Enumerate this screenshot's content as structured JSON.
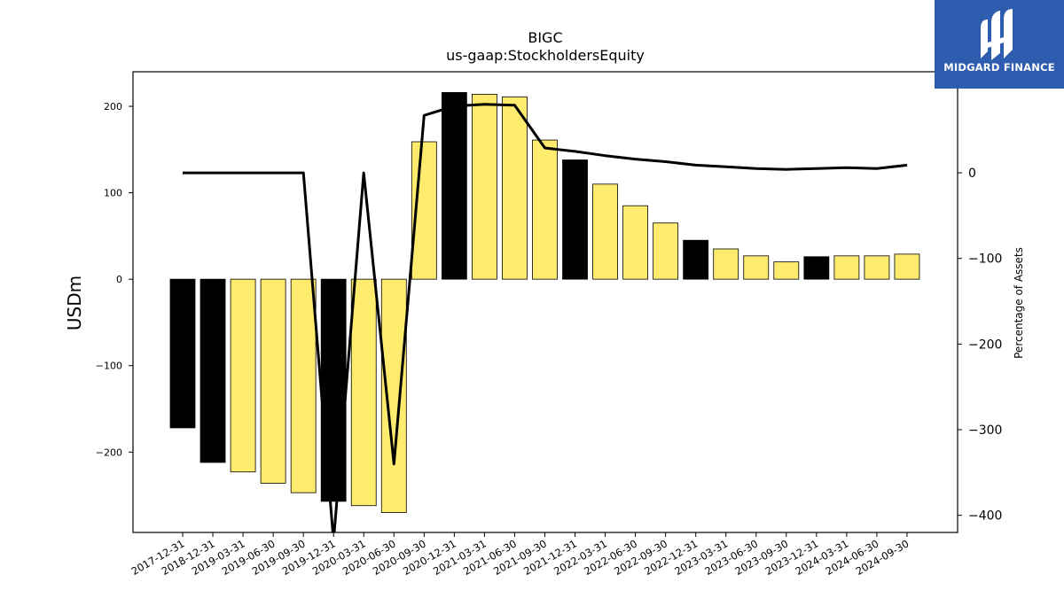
{
  "chart_data": {
    "type": "bar",
    "title": "BIGC",
    "subtitle": "us-gaap:StockholdersEquity",
    "ylabel": "USDm",
    "y2label": "Percentage of Assets",
    "ylim": [
      -293,
      240
    ],
    "y2lim": [
      -420,
      118
    ],
    "yticks": [
      -200,
      -100,
      0,
      100,
      200
    ],
    "y2ticks": [
      -400,
      -300,
      -200,
      -100,
      0
    ],
    "categories": [
      "2017-12-31",
      "2018-12-31",
      "2019-03-31",
      "2019-06-30",
      "2019-09-30",
      "2019-12-31",
      "2020-03-31",
      "2020-06-30",
      "2020-09-30",
      "2020-12-31",
      "2021-03-31",
      "2021-06-30",
      "2021-09-30",
      "2021-12-31",
      "2022-03-31",
      "2022-06-30",
      "2022-09-30",
      "2022-12-31",
      "2023-03-31",
      "2023-06-30",
      "2023-09-30",
      "2023-12-31",
      "2024-03-31",
      "2024-06-30",
      "2024-09-30"
    ],
    "series": [
      {
        "type": "bar",
        "values": [
          -172,
          -212,
          -223,
          -236,
          -247,
          -257,
          -262,
          -270,
          159,
          216,
          214,
          211,
          161,
          138,
          110,
          85,
          65,
          45,
          35,
          27,
          20,
          26,
          27,
          27,
          29
        ],
        "colors": [
          "#000000",
          "#000000",
          "#ffec6e",
          "#ffec6e",
          "#ffec6e",
          "#000000",
          "#ffec6e",
          "#ffec6e",
          "#ffec6e",
          "#000000",
          "#ffec6e",
          "#ffec6e",
          "#ffec6e",
          "#000000",
          "#ffec6e",
          "#ffec6e",
          "#ffec6e",
          "#000000",
          "#ffec6e",
          "#ffec6e",
          "#ffec6e",
          "#000000",
          "#ffec6e",
          "#ffec6e",
          "#ffec6e"
        ]
      },
      {
        "type": "line",
        "axis": "right",
        "color": "#000000",
        "values": [
          0,
          0,
          0,
          0,
          0,
          -430,
          0,
          -340,
          67,
          78,
          80,
          79,
          29,
          25,
          20,
          16,
          13,
          9,
          7,
          5,
          4,
          5,
          6,
          5,
          9
        ]
      }
    ],
    "grid": false,
    "legend": "none"
  },
  "logo": {
    "text": "MIDGARD FINANCE",
    "color": "#2e5cae"
  }
}
